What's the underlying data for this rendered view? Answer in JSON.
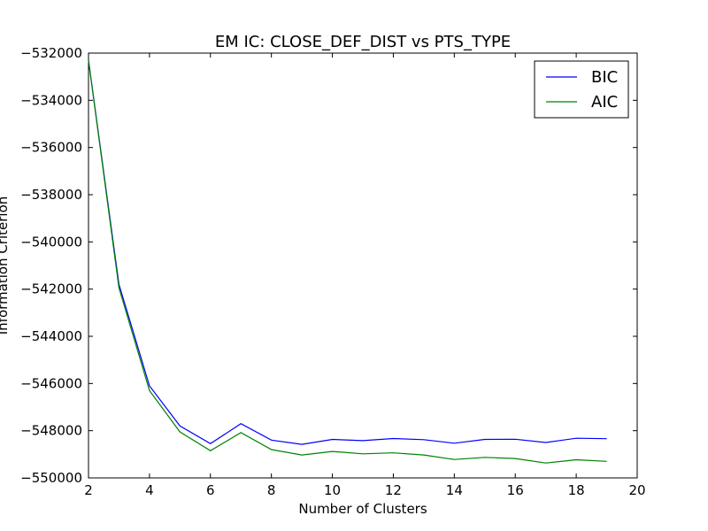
{
  "chart_data": {
    "type": "line",
    "title": "EM IC: CLOSE_DEF_DIST vs PTS_TYPE",
    "xlabel": "Number of Clusters",
    "ylabel": "Information Criterion",
    "xlim": [
      2,
      20
    ],
    "ylim": [
      -550000,
      -532000
    ],
    "xticks": [
      2,
      4,
      6,
      8,
      10,
      12,
      14,
      16,
      18,
      20
    ],
    "yticks": [
      -532000,
      -534000,
      -536000,
      -538000,
      -540000,
      -542000,
      -544000,
      -546000,
      -548000,
      -550000
    ],
    "xtick_labels": [
      "2",
      "4",
      "6",
      "8",
      "10",
      "12",
      "14",
      "16",
      "18",
      "20"
    ],
    "ytick_labels": [
      "−532000",
      "−534000",
      "−536000",
      "−538000",
      "−540000",
      "−542000",
      "−544000",
      "−546000",
      "−548000",
      "−550000"
    ],
    "grid": false,
    "legend_position": "top-right",
    "x": [
      2,
      3,
      4,
      5,
      6,
      7,
      8,
      9,
      10,
      11,
      12,
      13,
      14,
      15,
      16,
      17,
      18,
      19
    ],
    "series": [
      {
        "name": "BIC",
        "color": "#0000ff",
        "values": [
          -532300,
          -541800,
          -546100,
          -547800,
          -548550,
          -547700,
          -548400,
          -548580,
          -548370,
          -548420,
          -548330,
          -548380,
          -548530,
          -548370,
          -548360,
          -548500,
          -548320,
          -548340
        ]
      },
      {
        "name": "AIC",
        "color": "#008000",
        "values": [
          -532300,
          -541950,
          -546300,
          -548050,
          -548850,
          -548080,
          -548800,
          -549030,
          -548880,
          -548980,
          -548940,
          -549030,
          -549220,
          -549130,
          -549180,
          -549370,
          -549230,
          -549300
        ]
      }
    ]
  }
}
